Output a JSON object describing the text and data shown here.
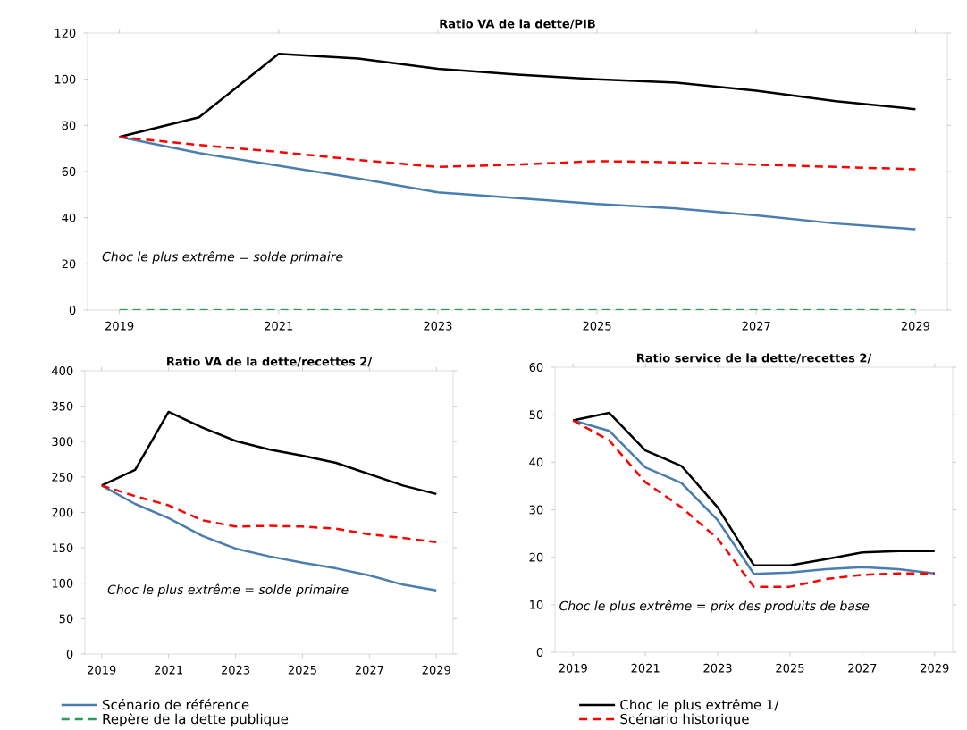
{
  "chart_data": [
    {
      "type": "line",
      "title": "Ratio  VA de la dette/PIB",
      "x": [
        2019,
        2020,
        2021,
        2022,
        2023,
        2024,
        2025,
        2026,
        2027,
        2028,
        2029
      ],
      "xlim": [
        2018.6,
        2029.4
      ],
      "xticks": [
        2019,
        2021,
        2023,
        2025,
        2027,
        2029
      ],
      "ylim": [
        0,
        120
      ],
      "yticks": [
        0,
        20,
        40,
        60,
        80,
        100,
        120
      ],
      "annotations": [
        "Choc le plus extrême =  solde primaire"
      ],
      "legend": "bottom",
      "series": [
        {
          "name": "Scénario de référence",
          "color": "#4a7eb0",
          "line_style": "solid",
          "values": [
            75,
            68,
            62.5,
            57,
            51,
            48.5,
            46,
            44,
            41,
            37.5,
            35
          ]
        },
        {
          "name": "Choc le plus extrême 1/",
          "color": "#000000",
          "line_style": "solid",
          "values": [
            75,
            83.5,
            111,
            109,
            104.5,
            102,
            100,
            98.5,
            95,
            90.5,
            87
          ]
        },
        {
          "name": "Repère de la dette publique",
          "color": "#2e9a5e",
          "line_style": "dashed",
          "values": [
            0,
            0,
            0,
            0,
            0,
            0,
            0,
            0,
            0,
            0,
            0
          ]
        },
        {
          "name": "Scénario historique",
          "color": "#ff0000",
          "line_style": "dashed",
          "values": [
            75,
            71.5,
            68.5,
            65,
            62,
            63,
            64.5,
            64,
            63,
            62,
            61
          ]
        }
      ]
    },
    {
      "type": "line",
      "title": "Ratio  VA de la dette/recettes  2/",
      "x": [
        2019,
        2020,
        2021,
        2022,
        2023,
        2024,
        2025,
        2026,
        2027,
        2028,
        2029
      ],
      "xlim": [
        2018.5,
        2029.5
      ],
      "xticks": [
        2019,
        2021,
        2023,
        2025,
        2027,
        2029
      ],
      "ylim": [
        0,
        400
      ],
      "yticks": [
        0,
        50,
        100,
        150,
        200,
        250,
        300,
        350,
        400
      ],
      "annotations": [
        "Choc le plus extrême = solde primaire"
      ],
      "series": [
        {
          "color": "#4a7eb0",
          "line_style": "solid",
          "values": [
            238,
            212,
            192,
            167,
            149,
            138,
            129,
            121,
            111,
            98,
            90
          ]
        },
        {
          "color": "#000000",
          "line_style": "solid",
          "values": [
            238,
            260,
            342,
            320,
            301,
            289,
            280,
            270,
            254,
            238,
            226
          ]
        },
        {
          "color": "#ff0000",
          "line_style": "dashed",
          "values": [
            238,
            223,
            210,
            189,
            180,
            181,
            180,
            177,
            169,
            164,
            158
          ]
        }
      ]
    },
    {
      "type": "line",
      "title": "Ratio service de la dette/recettes  2/",
      "x": [
        2019,
        2020,
        2021,
        2022,
        2023,
        2024,
        2025,
        2026,
        2027,
        2028,
        2029
      ],
      "xlim": [
        2018.5,
        2029.5
      ],
      "xticks": [
        2019,
        2021,
        2023,
        2025,
        2027,
        2029
      ],
      "ylim": [
        0,
        60
      ],
      "yticks": [
        0,
        10,
        20,
        30,
        40,
        50,
        60
      ],
      "annotations": [
        "Choc  le plus  extrême  =  prix des  produits  de base"
      ],
      "series": [
        {
          "color": "#4a7eb0",
          "line_style": "solid",
          "values": [
            48.8,
            46.6,
            38.9,
            35.6,
            27.8,
            16.5,
            16.8,
            17.5,
            17.9,
            17.5,
            16.6
          ]
        },
        {
          "color": "#000000",
          "line_style": "solid",
          "values": [
            48.8,
            50.4,
            42.5,
            39.2,
            30.5,
            18.3,
            18.3,
            19.6,
            21,
            21.3,
            21.3
          ]
        },
        {
          "color": "#ff0000",
          "line_style": "dashed",
          "values": [
            48.8,
            44.6,
            35.8,
            30.5,
            23.9,
            13.8,
            13.8,
            15.4,
            16.3,
            16.6,
            16.6
          ]
        }
      ]
    }
  ]
}
